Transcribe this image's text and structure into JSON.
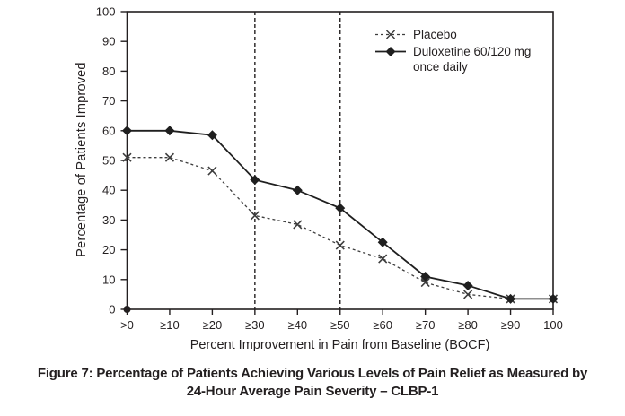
{
  "figure": {
    "caption_line1": "Figure 7: Percentage of Patients Achieving Various Levels of Pain Relief as Measured by",
    "caption_line2": "24-Hour Average Pain Severity – CLBP-1"
  },
  "chart_data": {
    "type": "line",
    "title": "",
    "xlabel": "Percent Improvement in Pain from Baseline (BOCF)",
    "ylabel": "Percentage of Patients Improved",
    "categories": [
      ">0",
      "≥10",
      "≥20",
      "≥30",
      "≥40",
      "≥50",
      "≥60",
      "≥70",
      "≥80",
      "≥90",
      "100"
    ],
    "ylim": [
      0,
      100
    ],
    "ytick_step": 10,
    "grid": false,
    "legend_position": "top-right-inside",
    "reference_line_categories": [
      "≥30",
      "≥50"
    ],
    "axis_color": "#231f20",
    "origin_marker": true,
    "series": [
      {
        "name": "Placebo",
        "values": [
          51,
          51,
          46.5,
          31.5,
          28.5,
          21.5,
          17,
          9,
          5,
          3.5,
          3.5
        ],
        "line": "dashed",
        "marker": "x",
        "color": "#3d3d3d"
      },
      {
        "name": "Duloxetine 60/120 mg once daily",
        "values": [
          60,
          60,
          58.5,
          43.5,
          40,
          34,
          22.5,
          11,
          8,
          3.5,
          3.5
        ],
        "line": "solid",
        "marker": "diamond",
        "color": "#1f1f1f"
      }
    ]
  }
}
